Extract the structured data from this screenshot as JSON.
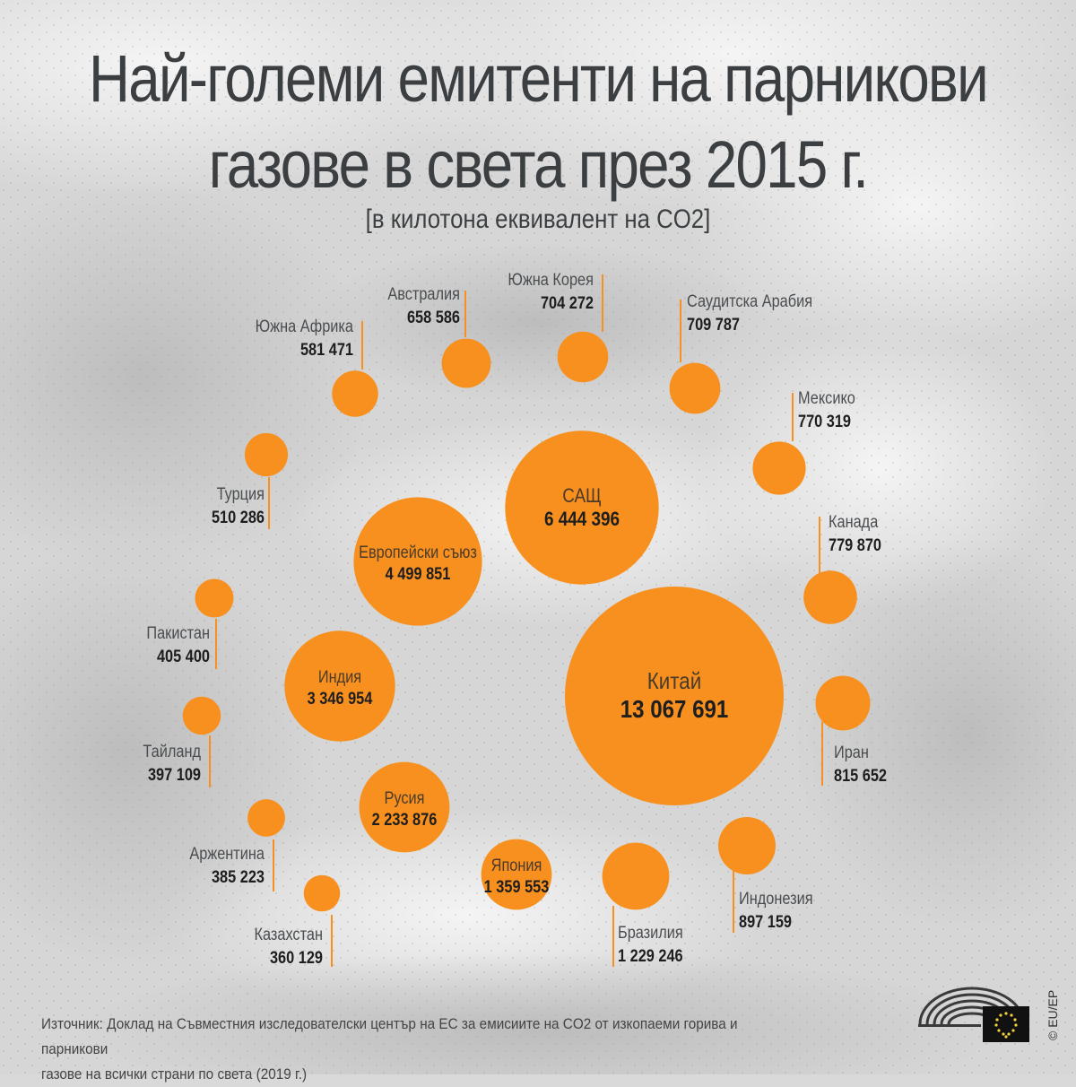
{
  "title_line1": "Най-големи емитенти на парникови",
  "title_line2": "газове в света през 2015 г.",
  "subtitle": "[в килотона еквивалент на CO2]",
  "source_line1": "Източник: Доклад на Съвместния изследователски център на ЕС за емисиите на CO2 от изкопаеми горива и парникови",
  "source_line2": "газове на всички страни по света (2019 г.)",
  "credit": "© EU/EP",
  "colors": {
    "bubble": "#f7901e",
    "text_dark": "#3c3f41",
    "leader": "#f7901e"
  },
  "chart_data": {
    "type": "bubble",
    "title": "Най-големи емитенти на парникови газове в света през 2015 г.",
    "unit": "[в килотона еквивалент на CO2]",
    "items": [
      {
        "name": "Китай",
        "label": "13 067 691",
        "value": 13067691
      },
      {
        "name": "САЩ",
        "label": "6 444 396",
        "value": 6444396
      },
      {
        "name": "Европейски съюз",
        "label": "4 499 851",
        "value": 4499851
      },
      {
        "name": "Индия",
        "label": "3 346 954",
        "value": 3346954
      },
      {
        "name": "Русия",
        "label": "2 233 876",
        "value": 2233876
      },
      {
        "name": "Япония",
        "label": "1 359 553",
        "value": 1359553
      },
      {
        "name": "Бразилия",
        "label": "1 229 246",
        "value": 1229246
      },
      {
        "name": "Индонезия",
        "label": "897 159",
        "value": 897159
      },
      {
        "name": "Иран",
        "label": "815 652",
        "value": 815652
      },
      {
        "name": "Канада",
        "label": "779 870",
        "value": 779870
      },
      {
        "name": "Мексико",
        "label": "770 319",
        "value": 770319
      },
      {
        "name": "Саудитска Арабия",
        "label": "709 787",
        "value": 709787
      },
      {
        "name": "Южна Корея",
        "label": "704 272",
        "value": 704272
      },
      {
        "name": "Австралия",
        "label": "658 586",
        "value": 658586
      },
      {
        "name": "Южна Африка",
        "label": "581 471",
        "value": 581471
      },
      {
        "name": "Турция",
        "label": "510 286",
        "value": 510286
      },
      {
        "name": "Пакистан",
        "label": "405 400",
        "value": 405400
      },
      {
        "name": "Тайланд",
        "label": "397 109",
        "value": 397109
      },
      {
        "name": "Аржентина",
        "label": "385 223",
        "value": 385223
      },
      {
        "name": "Казахстан",
        "label": "360 129",
        "value": 360129
      }
    ]
  }
}
